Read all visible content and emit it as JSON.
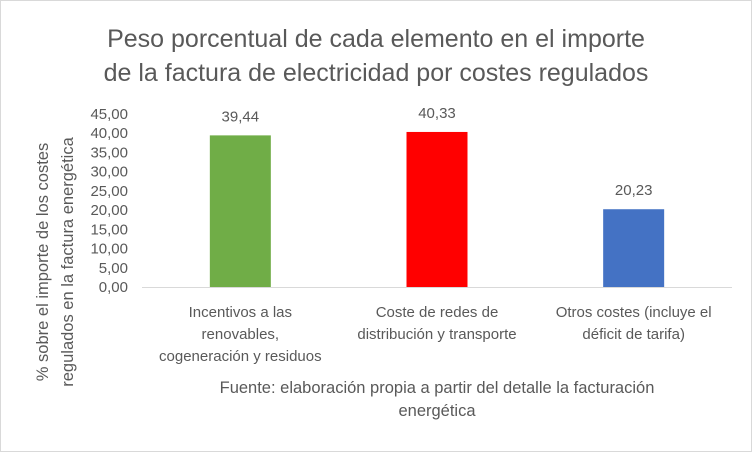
{
  "chart_data": {
    "type": "bar",
    "title_lines": [
      "Peso porcentual de cada elemento en el importe",
      "de la factura de electricidad por costes regulados"
    ],
    "ylabel_lines": [
      "% sobre el importe de los costes",
      "regulados en la factura energética"
    ],
    "xlabel_lines": [
      "Fuente: elaboración propia a partir del detalle la facturación",
      "energética"
    ],
    "categories": [
      [
        "Incentivos a las",
        "renovables,",
        "cogeneración y residuos"
      ],
      [
        "Coste de redes de",
        "distribución y transporte"
      ],
      [
        "Otros costes (incluye el",
        "déficit de tarifa)"
      ]
    ],
    "values": [
      39.44,
      40.33,
      20.23
    ],
    "value_labels": [
      "39,44",
      "40,33",
      "20,23"
    ],
    "bar_colors": [
      "#70ad47",
      "#ff0000",
      "#4472c4"
    ],
    "ylim": [
      0,
      45
    ],
    "yticks": [
      0,
      5,
      10,
      15,
      20,
      25,
      30,
      35,
      40,
      45
    ],
    "ytick_labels": [
      "0,00",
      "5,00",
      "10,00",
      "15,00",
      "20,00",
      "25,00",
      "30,00",
      "35,00",
      "40,00",
      "45,00"
    ],
    "grid": false,
    "legend": "none"
  }
}
